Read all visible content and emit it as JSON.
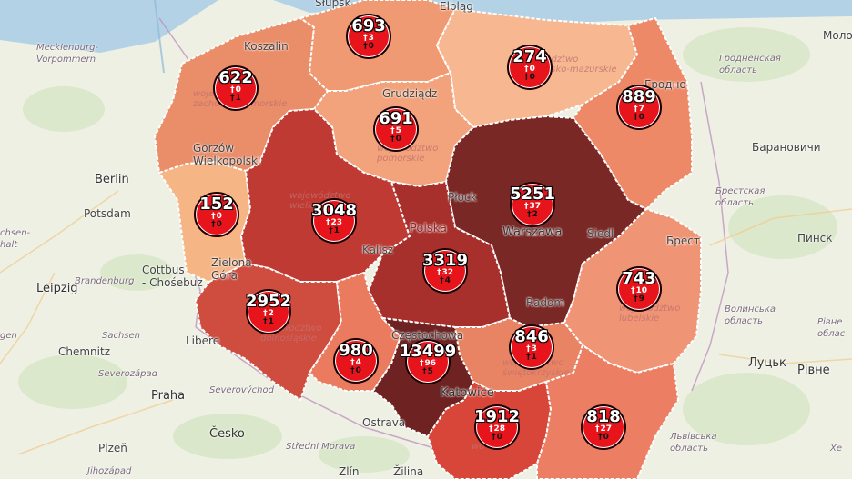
{
  "markers": [
    {
      "id": "zachodniopomorskie",
      "cases": "622",
      "deaths": "0",
      "recovered": "1"
    },
    {
      "id": "pomorskie",
      "cases": "693",
      "deaths": "3",
      "recovered": "0"
    },
    {
      "id": "warminsko-mazurskie",
      "cases": "274",
      "deaths": "0",
      "recovered": "0"
    },
    {
      "id": "podlaskie",
      "cases": "889",
      "deaths": "7",
      "recovered": "0"
    },
    {
      "id": "kujawsko-pomorskie",
      "cases": "691",
      "deaths": "5",
      "recovered": "0"
    },
    {
      "id": "lubuskie",
      "cases": "152",
      "deaths": "0",
      "recovered": "0"
    },
    {
      "id": "wielkopolskie",
      "cases": "3048",
      "deaths": "23",
      "recovered": "1"
    },
    {
      "id": "mazowieckie",
      "cases": "5251",
      "deaths": "37",
      "recovered": "2"
    },
    {
      "id": "lodzkie",
      "cases": "3319",
      "deaths": "32",
      "recovered": "4"
    },
    {
      "id": "dolnoslaskie",
      "cases": "2952",
      "deaths": "2",
      "recovered": "1"
    },
    {
      "id": "lubelskie",
      "cases": "743",
      "deaths": "10",
      "recovered": "9"
    },
    {
      "id": "opolskie",
      "cases": "980",
      "deaths": "4",
      "recovered": "0"
    },
    {
      "id": "slaskie",
      "cases": "13499",
      "deaths": "96",
      "recovered": "5"
    },
    {
      "id": "swietokrzyskie",
      "cases": "846",
      "deaths": "3",
      "recovered": "1"
    },
    {
      "id": "malopolskie",
      "cases": "1912",
      "deaths": "28",
      "recovered": "0"
    },
    {
      "id": "podkarpackie",
      "cases": "818",
      "deaths": "27",
      "recovered": "0"
    }
  ],
  "places": {
    "slupsk": "Słupsk",
    "elblag": "Elbląg",
    "koszalin": "Koszalin",
    "grudziadz": "Grudziądz",
    "grodno": "Гродно",
    "gorzow1": "Gorzów",
    "gorzow2": "Wielkopolski",
    "berlin": "Berlin",
    "potsdam": "Potsdam",
    "plock": "Płock",
    "polska": "Polska",
    "warszawa": "Warszawa",
    "siedlce": "Siedl",
    "brest": "Брест",
    "pinsk": "Пинск",
    "kalisz": "Kalisz",
    "zielona1": "Zielona",
    "zielona2": "Góra",
    "cottbus1": "Cottbus",
    "cottbus2": "- Chośebuz",
    "leipzig": "Leipzig",
    "radom": "Radom",
    "chemnitz": "Chemnitz",
    "liberec": "Libere",
    "czestochowa": "Częstochowa",
    "katowice": "Katowice",
    "praha": "Praha",
    "cesko": "Česko",
    "plzen": "Plzeň",
    "ostrava": "Ostrava",
    "zlin": "Zlín",
    "zilina": "Žilina",
    "lutsk": "Луцьк",
    "rivne": "Рівне",
    "baranovichi": "Барановичи",
    "molo": "Моло",
    "mecklenburg1": "Mecklenburg-",
    "mecklenburg2": "Vorpommern",
    "brandenburg": "Brandenburg",
    "sachsen": "Sachsen",
    "sachsen2": "chsen-",
    "sachsen3": "halt",
    "severozapad": "Severozápad",
    "severovychod": "Severovýchod",
    "strednimorava": "Střední Morava",
    "jihozapad": "Jihozápad",
    "grodnenskaya1": "Гродненская",
    "grodnenskaya2": "область",
    "brestskaya1": "Брестская",
    "brestskaya2": "область",
    "volynska1": "Волинська",
    "volynska2": "область",
    "rivnenska1": "Рівне",
    "rivnenska2": "облас",
    "lvivska1": "Львівська",
    "lvivska2": "область",
    "he": "Хе",
    "gen": "gen"
  },
  "region_labels": {
    "zach1": "województwo",
    "zach2": "zachodniopomorskie",
    "wm1": "województwo",
    "wm2": "warmińsko-mazurskie",
    "kp1": "województwo",
    "kp2": "pomorskie",
    "wlkp1": "województwo",
    "wlkp2": "wielkopolskie",
    "dol1": "województwo",
    "dol2": "dolnośląskie",
    "swk1": "województwo",
    "swk2": "świętokrzyskie",
    "lub1": "województwo",
    "lub2": "lubelskie",
    "mal1": "wo",
    "podk1": "wo",
    "pdl1": "wo"
  },
  "colors": {
    "marker": "#e8141b",
    "water": "#b4d2e6"
  }
}
